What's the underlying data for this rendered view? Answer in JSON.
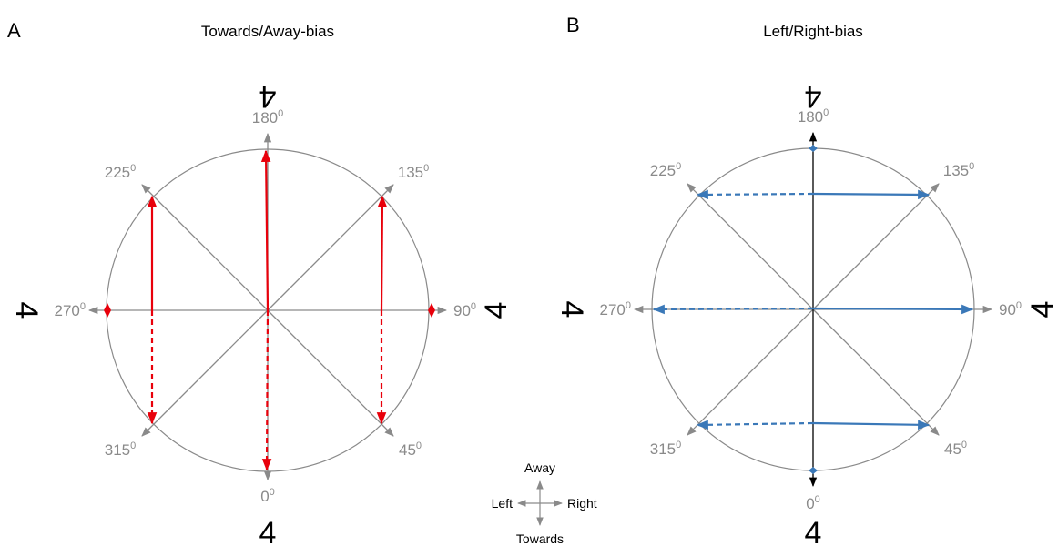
{
  "panel_a": {
    "letter": "A",
    "title": "Towards/Away-bias",
    "color": "#e8000b",
    "angles": [
      {
        "base": "180",
        "sup": "0"
      },
      {
        "base": "135",
        "sup": "0"
      },
      {
        "base": "90",
        "sup": "0"
      },
      {
        "base": "45",
        "sup": "0"
      },
      {
        "base": "0",
        "sup": "0"
      },
      {
        "base": "315",
        "sup": "0"
      },
      {
        "base": "270",
        "sup": "0"
      },
      {
        "base": "225",
        "sup": "0"
      }
    ],
    "digits": {
      "top": "4",
      "right": "4",
      "bottom": "4",
      "left": "4"
    }
  },
  "panel_b": {
    "letter": "B",
    "title": "Left/Right-bias",
    "color": "#3a78b8",
    "angles": [
      {
        "base": "180",
        "sup": "0"
      },
      {
        "base": "135",
        "sup": "0"
      },
      {
        "base": "90",
        "sup": "0"
      },
      {
        "base": "45",
        "sup": "0"
      },
      {
        "base": "0",
        "sup": "0"
      },
      {
        "base": "315",
        "sup": "0"
      },
      {
        "base": "270",
        "sup": "0"
      },
      {
        "base": "225",
        "sup": "0"
      }
    ],
    "digits": {
      "top": "4",
      "right": "4",
      "bottom": "4",
      "left": "4"
    }
  },
  "legend": {
    "away": "Away",
    "left": "Left",
    "right": "Right",
    "towards": "Towards"
  },
  "colors": {
    "axis_gray": "#8a8a8a",
    "circle_gray": "#8a8a8a",
    "text": "#000000"
  }
}
